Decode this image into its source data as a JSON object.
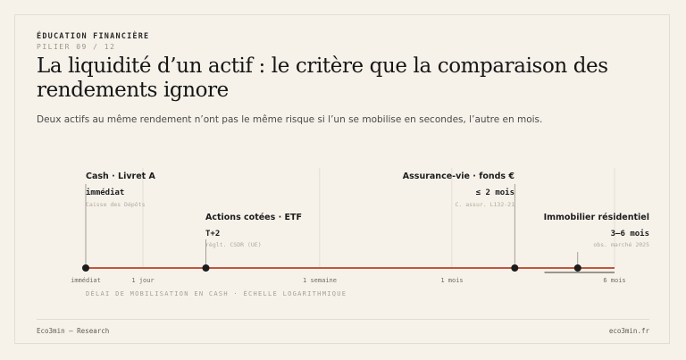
{
  "header": {
    "eyebrow": "ÉDUCATION FINANCIÈRE",
    "pillar": "PILIER 09 / 12",
    "title": "La liquidité d’un actif : le critère que la comparaison des rendements ignore",
    "subtitle": "Deux actifs au même rendement n’ont pas le même risque si l’un se mobilise en secondes, l’autre en mois."
  },
  "colors": {
    "accent": "#c4553d",
    "marker": "#1c1c1c",
    "range_band": "#9b958b"
  },
  "chart_data": {
    "type": "scatter",
    "scale": "log",
    "xlabel": "DÉLAI DE MOBILISATION EN CASH · ÉCHELLE LOGARITHMIQUE",
    "ticks": [
      "immédiat",
      "1 jour",
      "1 semaine",
      "1 mois",
      "6 mois"
    ],
    "ticks_days": [
      0,
      1,
      7,
      30,
      180
    ],
    "assets": [
      {
        "name": "Cash · Livret A",
        "delay": "immédiat",
        "source": "Caisse des Dépôts",
        "days": 0
      },
      {
        "name": "Actions cotées · ETF",
        "delay": "T+2",
        "source": "règlt. CSDR (UE)",
        "days": 2
      },
      {
        "name": "Assurance-vie · fonds €",
        "delay": "≤ 2 mois",
        "source": "C. assur. L132-21",
        "days": 60
      },
      {
        "name": "Immobilier résidentiel",
        "delay": "3–6 mois",
        "source": "obs. marché 2025",
        "days": 120,
        "range_days": [
          90,
          180
        ]
      }
    ]
  },
  "footer": {
    "left": "Eco3min — Research",
    "right": "eco3min.fr"
  }
}
